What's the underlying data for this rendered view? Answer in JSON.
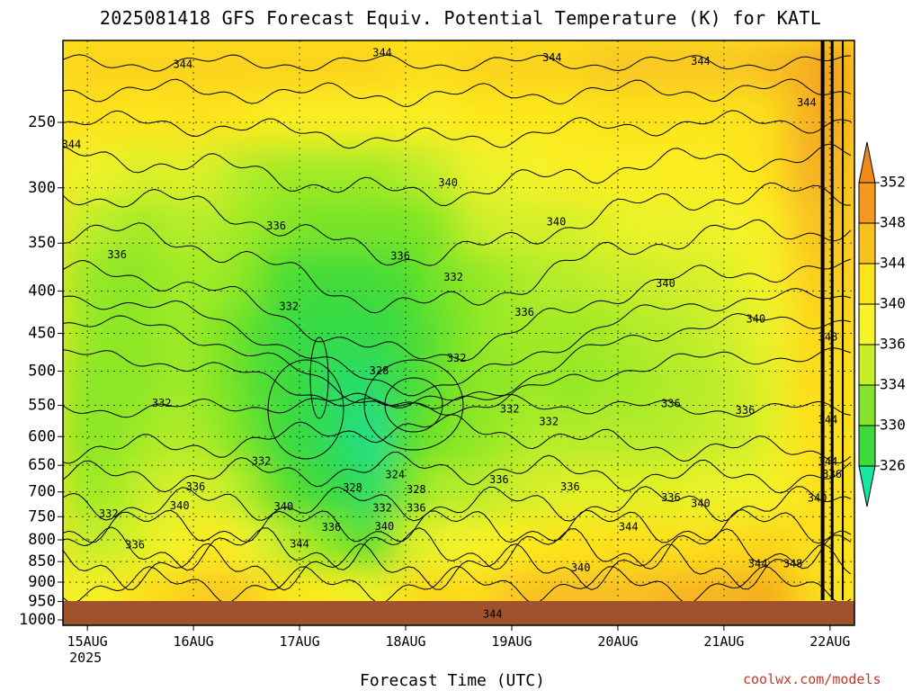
{
  "title": "2025081418 GFS Forecast Equiv. Potential Temperature (K) for KATL",
  "credit": "coolwx.com/models",
  "chart_data": {
    "type": "heatmap",
    "title": "2025081418 GFS Forecast Equiv. Potential Temperature (K) for KATL",
    "xlabel": "Forecast Time (UTC)",
    "ylabel": "",
    "x_ticks": [
      {
        "day": 0,
        "label": "15AUG",
        "sub": "2025"
      },
      {
        "day": 1,
        "label": "16AUG",
        "sub": ""
      },
      {
        "day": 2,
        "label": "17AUG",
        "sub": ""
      },
      {
        "day": 3,
        "label": "18AUG",
        "sub": ""
      },
      {
        "day": 4,
        "label": "19AUG",
        "sub": ""
      },
      {
        "day": 5,
        "label": "20AUG",
        "sub": ""
      },
      {
        "day": 6,
        "label": "21AUG",
        "sub": ""
      },
      {
        "day": 7,
        "label": "22AUG",
        "sub": ""
      }
    ],
    "xlim_days": [
      -0.23,
      7.23
    ],
    "y_ticks": [
      250,
      300,
      350,
      400,
      450,
      500,
      550,
      600,
      650,
      700,
      750,
      800,
      850,
      900,
      950,
      1000
    ],
    "ylim_hpa": [
      1000,
      200
    ],
    "y_scale": "log-pressure (top ~200 hPa, bottom 1000 hPa)",
    "grid": true,
    "colorbar": {
      "levels": [
        352,
        348,
        344,
        340,
        336,
        334,
        330,
        326
      ],
      "colors": [
        "#f29a1e",
        "#f7c220",
        "#fde51d",
        "#f6f32a",
        "#c8ee2a",
        "#87e22b",
        "#3ed93b",
        "#1fe08a"
      ],
      "extend_top_color": "#f08a1a",
      "extend_bottom_color": "#16e89e"
    },
    "field_cells": [
      [
        345,
        345,
        345,
        345,
        345,
        345,
        345,
        345,
        345,
        345,
        344,
        344,
        345,
        345,
        345,
        345,
        346,
        346,
        346,
        346,
        346,
        347,
        348,
        350
      ],
      [
        343,
        343,
        342,
        343,
        343,
        342,
        341,
        341,
        341,
        341,
        341,
        341,
        342,
        342,
        342,
        342,
        343,
        343,
        343,
        343,
        343,
        344,
        348,
        349
      ],
      [
        339,
        339,
        337,
        338,
        337,
        335,
        334,
        334,
        334,
        334,
        335,
        336,
        339,
        339,
        340,
        341,
        341,
        341,
        341,
        341,
        342,
        343,
        348,
        348
      ],
      [
        336,
        335,
        334,
        335,
        335,
        334,
        333,
        332,
        332,
        332,
        332,
        333,
        336,
        337,
        337,
        337,
        338,
        339,
        339,
        339,
        340,
        341,
        346,
        347
      ],
      [
        334,
        333,
        333,
        334,
        334,
        333,
        330,
        329,
        329,
        329,
        330,
        332,
        333,
        334,
        335,
        335,
        336,
        336,
        337,
        337,
        338,
        340,
        345,
        346
      ],
      [
        334,
        333,
        333,
        334,
        333,
        331,
        329,
        328,
        328,
        328,
        329,
        331,
        333,
        334,
        334,
        334,
        334,
        335,
        335,
        336,
        337,
        339,
        344,
        345
      ],
      [
        333,
        333,
        333,
        334,
        333,
        331,
        329,
        328,
        327,
        327,
        329,
        331,
        333,
        333,
        334,
        333,
        334,
        334,
        335,
        335,
        336,
        338,
        344,
        344
      ],
      [
        333,
        333,
        334,
        335,
        334,
        332,
        329,
        328,
        327,
        326,
        330,
        332,
        333,
        334,
        335,
        335,
        335,
        335,
        335,
        336,
        336,
        338,
        343,
        344
      ],
      [
        334,
        334,
        336,
        337,
        337,
        335,
        331,
        329,
        328,
        327,
        332,
        335,
        335,
        336,
        337,
        338,
        338,
        338,
        338,
        339,
        339,
        340,
        343,
        344
      ],
      [
        336,
        336,
        338,
        340,
        342,
        340,
        336,
        334,
        332,
        330,
        337,
        339,
        340,
        341,
        342,
        343,
        343,
        344,
        343,
        344,
        344,
        345,
        344,
        343
      ],
      [
        340,
        341,
        344,
        345,
        346,
        346,
        343,
        342,
        341,
        339,
        344,
        345,
        344,
        346,
        347,
        347,
        347,
        347,
        348,
        348,
        348,
        349,
        345,
        343
      ]
    ],
    "contour_labels": [
      {
        "day": 0.9,
        "hpa": 213,
        "text": "344"
      },
      {
        "day": 2.78,
        "hpa": 206,
        "text": "344"
      },
      {
        "day": 4.38,
        "hpa": 209,
        "text": "344"
      },
      {
        "day": 5.78,
        "hpa": 211,
        "text": "344"
      },
      {
        "day": 6.78,
        "hpa": 237,
        "text": "344"
      },
      {
        "day": -0.15,
        "hpa": 266,
        "text": "344"
      },
      {
        "day": 3.4,
        "hpa": 296,
        "text": "340"
      },
      {
        "day": 4.42,
        "hpa": 330,
        "text": "340"
      },
      {
        "day": 5.45,
        "hpa": 392,
        "text": "340"
      },
      {
        "day": 6.3,
        "hpa": 433,
        "text": "340"
      },
      {
        "day": 1.78,
        "hpa": 334,
        "text": "336"
      },
      {
        "day": 0.28,
        "hpa": 362,
        "text": "336"
      },
      {
        "day": 2.95,
        "hpa": 363,
        "text": "336"
      },
      {
        "day": 4.12,
        "hpa": 425,
        "text": "336"
      },
      {
        "day": 3.45,
        "hpa": 385,
        "text": "332"
      },
      {
        "day": 1.9,
        "hpa": 418,
        "text": "332"
      },
      {
        "day": 3.48,
        "hpa": 483,
        "text": "332"
      },
      {
        "day": 0.7,
        "hpa": 547,
        "text": "332"
      },
      {
        "day": 3.98,
        "hpa": 556,
        "text": "332"
      },
      {
        "day": 4.35,
        "hpa": 576,
        "text": "332"
      },
      {
        "day": 1.64,
        "hpa": 643,
        "text": "332"
      },
      {
        "day": 0.2,
        "hpa": 745,
        "text": "332"
      },
      {
        "day": 2.75,
        "hpa": 500,
        "text": "328"
      },
      {
        "day": 2.5,
        "hpa": 693,
        "text": "328"
      },
      {
        "day": 3.1,
        "hpa": 696,
        "text": "328"
      },
      {
        "day": 2.9,
        "hpa": 668,
        "text": "324"
      },
      {
        "day": 2.78,
        "hpa": 733,
        "text": "332"
      },
      {
        "day": 3.1,
        "hpa": 733,
        "text": "336"
      },
      {
        "day": 5.5,
        "hpa": 548,
        "text": "336"
      },
      {
        "day": 6.2,
        "hpa": 558,
        "text": "336"
      },
      {
        "day": 1.02,
        "hpa": 691,
        "text": "336"
      },
      {
        "day": 3.88,
        "hpa": 677,
        "text": "336"
      },
      {
        "day": 4.55,
        "hpa": 691,
        "text": "336"
      },
      {
        "day": 5.5,
        "hpa": 712,
        "text": "336"
      },
      {
        "day": 2.3,
        "hpa": 773,
        "text": "336"
      },
      {
        "day": 0.45,
        "hpa": 812,
        "text": "336"
      },
      {
        "day": 0.87,
        "hpa": 728,
        "text": "340"
      },
      {
        "day": 1.85,
        "hpa": 730,
        "text": "340"
      },
      {
        "day": 2.8,
        "hpa": 771,
        "text": "340"
      },
      {
        "day": 5.78,
        "hpa": 724,
        "text": "340"
      },
      {
        "day": 4.65,
        "hpa": 866,
        "text": "340"
      },
      {
        "day": 6.88,
        "hpa": 713,
        "text": "340"
      },
      {
        "day": 2.0,
        "hpa": 810,
        "text": "344"
      },
      {
        "day": 5.1,
        "hpa": 772,
        "text": "344"
      },
      {
        "day": 6.32,
        "hpa": 856,
        "text": "344"
      },
      {
        "day": 3.82,
        "hpa": 985,
        "text": "344"
      },
      {
        "day": 6.65,
        "hpa": 856,
        "text": "348"
      },
      {
        "day": 6.98,
        "hpa": 455,
        "text": "348"
      },
      {
        "day": 6.98,
        "hpa": 573,
        "text": "344"
      },
      {
        "day": 6.98,
        "hpa": 644,
        "text": "344"
      },
      {
        "day": 7.02,
        "hpa": 667,
        "text": "336"
      }
    ]
  }
}
